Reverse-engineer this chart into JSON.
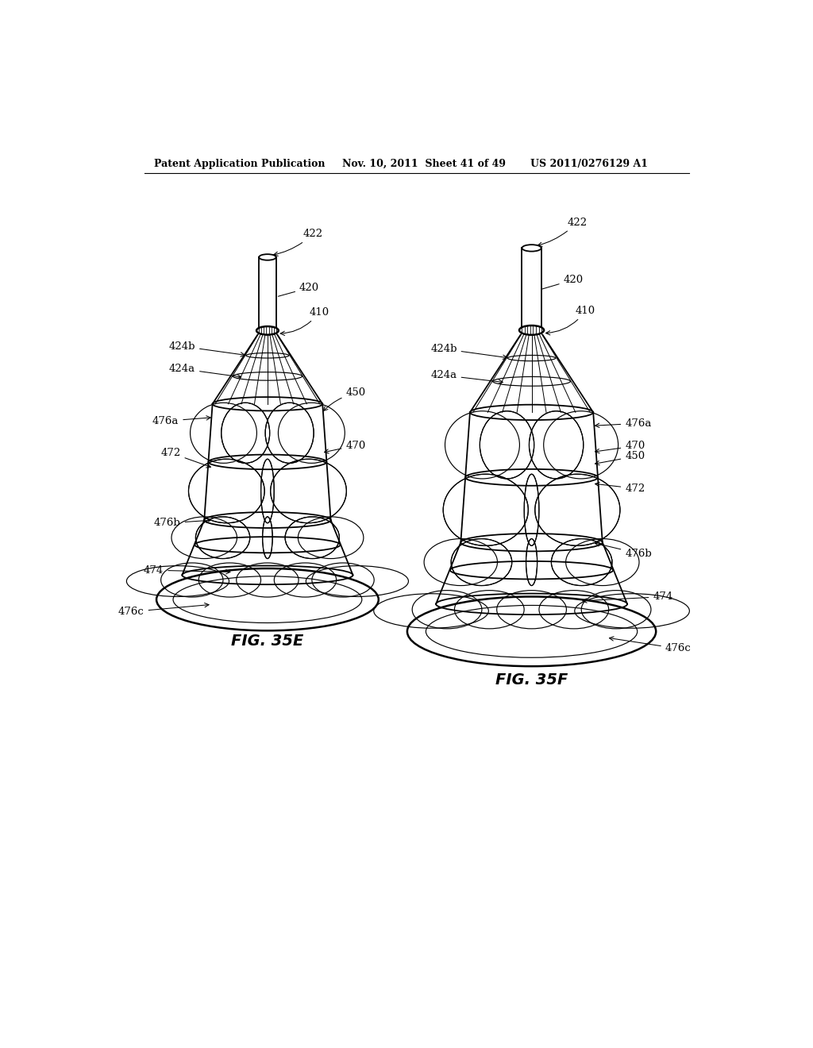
{
  "bg_color": "#ffffff",
  "text_color": "#000000",
  "header_left": "Patent Application Publication",
  "header_mid": "Nov. 10, 2011  Sheet 41 of 49",
  "header_right": "US 2011/0276129 A1",
  "fig_label_E": "FIG. 35E",
  "fig_label_F": "FIG. 35F",
  "line_color": "#000000",
  "lw_main": 1.3,
  "lw_thin": 0.85,
  "lw_thick": 1.8,
  "fs_label": 9.5,
  "fs_caption": 14
}
